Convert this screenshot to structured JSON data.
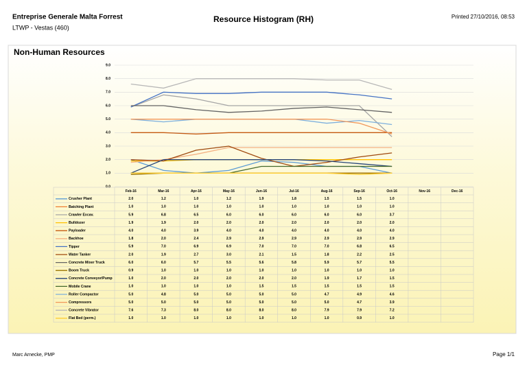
{
  "header": {
    "company": "Entreprise Generale Malta Forrest",
    "project": "LTWP - Vestas (460)",
    "title": "Resource Histogram (RH)",
    "printed": "Printed 27/10/2016, 08:53"
  },
  "footer": {
    "author": "Marc Arnecke, PMP",
    "page": "Page 1/1"
  },
  "chart_data": {
    "type": "line",
    "title": "Non-Human Resources",
    "categories": [
      "Feb-16",
      "Mar-16",
      "Apr-16",
      "May-16",
      "Jun-16",
      "Jul-16",
      "Aug-16",
      "Sep-16",
      "Oct-16",
      "Nov-16",
      "Dec-16"
    ],
    "ylim": [
      0,
      9
    ],
    "yticks": [
      {
        "value": 0,
        "label": "0.0"
      },
      {
        "value": 1,
        "label": "1.0"
      },
      {
        "value": 2,
        "label": "2.0"
      },
      {
        "value": 3,
        "label": "3.0"
      },
      {
        "value": 4,
        "label": "4.0"
      },
      {
        "value": 5,
        "label": "5.0"
      },
      {
        "value": 6,
        "label": "6.0"
      },
      {
        "value": 7,
        "label": "7.0"
      },
      {
        "value": 8,
        "label": "8.0"
      },
      {
        "value": 9,
        "label": "9.0"
      }
    ],
    "grid": true,
    "series": [
      {
        "name": "Crusher Plant",
        "color": "#5b9bd5",
        "values": [
          2.0,
          1.2,
          1.0,
          1.2,
          1.9,
          1.8,
          1.5,
          1.5,
          1.0,
          null,
          null
        ],
        "value_labels": [
          "2.0",
          "1.2",
          "1.0",
          "1.2",
          "1.9",
          "1.8",
          "1.5",
          "1.5",
          "1.0",
          null,
          null
        ]
      },
      {
        "name": "Batching Plant",
        "color": "#ed7d31",
        "values": [
          1.0,
          1.0,
          1.0,
          1.0,
          1.0,
          1.0,
          1.0,
          1.0,
          1.0,
          null,
          null
        ],
        "value_labels": [
          "1.0",
          "1.0",
          "1.0",
          "1.0",
          "1.0",
          "1.0",
          "1.0",
          "1.0",
          "1.0",
          null,
          null
        ]
      },
      {
        "name": "Crawler Excav.",
        "color": "#a5a5a5",
        "values": [
          5.9,
          6.8,
          6.5,
          6.0,
          6.0,
          6.0,
          6.0,
          6.0,
          3.7,
          null,
          null
        ],
        "value_labels": [
          "5.9",
          "6.8",
          "6.5",
          "6.0",
          "6.0",
          "6.0",
          "6.0",
          "6.0",
          "3.7",
          null,
          null
        ]
      },
      {
        "name": "Bulldozer",
        "color": "#ffc000",
        "values": [
          1.9,
          1.9,
          2.0,
          2.0,
          2.0,
          2.0,
          2.0,
          2.0,
          2.0,
          null,
          null
        ],
        "value_labels": [
          "1.9",
          "1.9",
          "2.0",
          "2.0",
          "2.0",
          "2.0",
          "2.0",
          "2.0",
          "2.0",
          null,
          null
        ]
      },
      {
        "name": "Payloader",
        "color": "#c55a11",
        "values": [
          4.0,
          4.0,
          3.9,
          4.0,
          4.0,
          4.0,
          4.0,
          4.0,
          4.0,
          null,
          null
        ],
        "value_labels": [
          "4.0",
          "4.0",
          "3.9",
          "4.0",
          "4.0",
          "4.0",
          "4.0",
          "4.0",
          "4.0",
          null,
          null
        ]
      },
      {
        "name": "Backhoe",
        "color": "#f4b183",
        "values": [
          1.8,
          2.0,
          2.4,
          2.9,
          2.9,
          2.9,
          2.9,
          2.9,
          2.9,
          null,
          null
        ],
        "value_labels": [
          "1.8",
          "2.0",
          "2.4",
          "2.9",
          "2.9",
          "2.9",
          "2.9",
          "2.9",
          "2.9",
          null,
          null
        ]
      },
      {
        "name": "Tipper",
        "color": "#4472c4",
        "values": [
          5.9,
          7.0,
          6.9,
          6.9,
          7.0,
          7.0,
          7.0,
          6.8,
          6.5,
          null,
          null
        ],
        "value_labels": [
          "5.9",
          "7.0",
          "6.9",
          "6.9",
          "7.0",
          "7.0",
          "7.0",
          "6.8",
          "6.5",
          null,
          null
        ]
      },
      {
        "name": "Water Tanker",
        "color": "#9e480e",
        "values": [
          2.0,
          1.9,
          2.7,
          3.0,
          2.1,
          1.5,
          1.8,
          2.2,
          2.5,
          null,
          null
        ],
        "value_labels": [
          "2.0",
          "1.9",
          "2.7",
          "3.0",
          "2.1",
          "1.5",
          "1.8",
          "2.2",
          "2.5",
          null,
          null
        ]
      },
      {
        "name": "Concrete Mixer Truck",
        "color": "#636363",
        "values": [
          6.0,
          6.0,
          5.7,
          5.5,
          5.6,
          5.8,
          5.9,
          5.7,
          5.5,
          null,
          null
        ],
        "value_labels": [
          "6.0",
          "6.0",
          "5.7",
          "5.5",
          "5.6",
          "5.8",
          "5.9",
          "5.7",
          "5.5",
          null,
          null
        ]
      },
      {
        "name": "Boom Truck",
        "color": "#997300",
        "values": [
          0.9,
          1.0,
          1.0,
          1.0,
          1.0,
          1.0,
          1.0,
          1.0,
          1.0,
          null,
          null
        ],
        "value_labels": [
          "0.9",
          "1.0",
          "1.0",
          "1.0",
          "1.0",
          "1.0",
          "1.0",
          "1.0",
          "1.0",
          null,
          null
        ]
      },
      {
        "name": "Concrete Conveyor/Pump",
        "color": "#264478",
        "values": [
          1.0,
          2.0,
          2.0,
          2.0,
          2.0,
          2.0,
          1.9,
          1.7,
          1.5,
          null,
          null
        ],
        "value_labels": [
          "1.0",
          "2.0",
          "2.0",
          "2.0",
          "2.0",
          "2.0",
          "1.9",
          "1.7",
          "1.5",
          null,
          null
        ]
      },
      {
        "name": "Mobile Crane",
        "color": "#43682b",
        "values": [
          1.0,
          1.0,
          1.0,
          1.0,
          1.5,
          1.5,
          1.5,
          1.5,
          1.5,
          null,
          null
        ],
        "value_labels": [
          "1.0",
          "1.0",
          "1.0",
          "1.0",
          "1.5",
          "1.5",
          "1.5",
          "1.5",
          "1.5",
          null,
          null
        ]
      },
      {
        "name": "Roller Compactor",
        "color": "#7cafdd",
        "values": [
          5.0,
          4.8,
          5.0,
          5.0,
          5.0,
          5.0,
          4.7,
          4.9,
          4.6,
          null,
          null
        ],
        "value_labels": [
          "5.0",
          "4.8",
          "5.0",
          "5.0",
          "5.0",
          "5.0",
          "4.7",
          "4.9",
          "4.6",
          null,
          null
        ]
      },
      {
        "name": "Compressors",
        "color": "#f1975a",
        "values": [
          5.0,
          5.0,
          5.0,
          5.0,
          5.0,
          5.0,
          5.0,
          4.7,
          3.9,
          null,
          null
        ],
        "value_labels": [
          "5.0",
          "5.0",
          "5.0",
          "5.0",
          "5.0",
          "5.0",
          "5.0",
          "4.7",
          "3.9",
          null,
          null
        ]
      },
      {
        "name": "Concrete Vibrator",
        "color": "#b7b7b7",
        "values": [
          7.6,
          7.3,
          8.0,
          8.0,
          8.0,
          8.0,
          7.9,
          7.9,
          7.2,
          null,
          null
        ],
        "value_labels": [
          "7.6",
          "7.3",
          "8.0",
          "8.0",
          "8.0",
          "8.0",
          "7.9",
          "7.9",
          "7.2",
          null,
          null
        ]
      },
      {
        "name": "Flat Bed (perm.)",
        "color": "#ffcd33",
        "values": [
          1.0,
          1.0,
          1.0,
          1.0,
          1.0,
          1.0,
          1.0,
          0.9,
          1.0,
          null,
          null
        ],
        "value_labels": [
          "1.0",
          "1.0",
          "1.0",
          "1.0",
          "1.0",
          "1.0",
          "1.0",
          "0.9",
          "1.0",
          null,
          null
        ]
      }
    ]
  }
}
